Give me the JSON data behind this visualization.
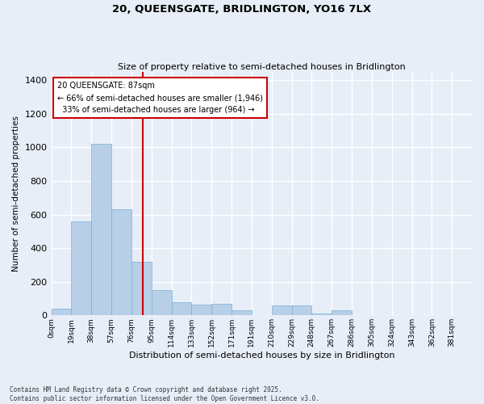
{
  "title": "20, QUEENSGATE, BRIDLINGTON, YO16 7LX",
  "subtitle": "Size of property relative to semi-detached houses in Bridlington",
  "xlabel": "Distribution of semi-detached houses by size in Bridlington",
  "ylabel": "Number of semi-detached properties",
  "categories": [
    "0sqm",
    "19sqm",
    "38sqm",
    "57sqm",
    "76sqm",
    "95sqm",
    "114sqm",
    "133sqm",
    "152sqm",
    "171sqm",
    "191sqm",
    "210sqm",
    "229sqm",
    "248sqm",
    "267sqm",
    "286sqm",
    "305sqm",
    "324sqm",
    "343sqm",
    "362sqm",
    "381sqm"
  ],
  "values": [
    40,
    560,
    1020,
    630,
    320,
    150,
    80,
    65,
    70,
    30,
    0,
    60,
    60,
    10,
    30,
    0,
    0,
    0,
    0,
    0,
    0
  ],
  "bar_color": "#b8cfe8",
  "bar_edge_color": "#7aafd4",
  "bar_width": 1.0,
  "ylim": [
    0,
    1450
  ],
  "yticks": [
    0,
    200,
    400,
    600,
    800,
    1000,
    1200,
    1400
  ],
  "property_size": 87,
  "property_line_color": "#cc0000",
  "property_label": "20 QUEENSGATE: 87sqm",
  "pct_smaller": "66% of semi-detached houses are smaller (1,946)",
  "pct_larger": "33% of semi-detached houses are larger (964)",
  "annotation_box_color": "#cc0000",
  "bg_color": "#e8eef8",
  "grid_color": "#ffffff",
  "footnote": "Contains HM Land Registry data © Crown copyright and database right 2025.\nContains public sector information licensed under the Open Government Licence v3.0.",
  "bin_width": 19
}
